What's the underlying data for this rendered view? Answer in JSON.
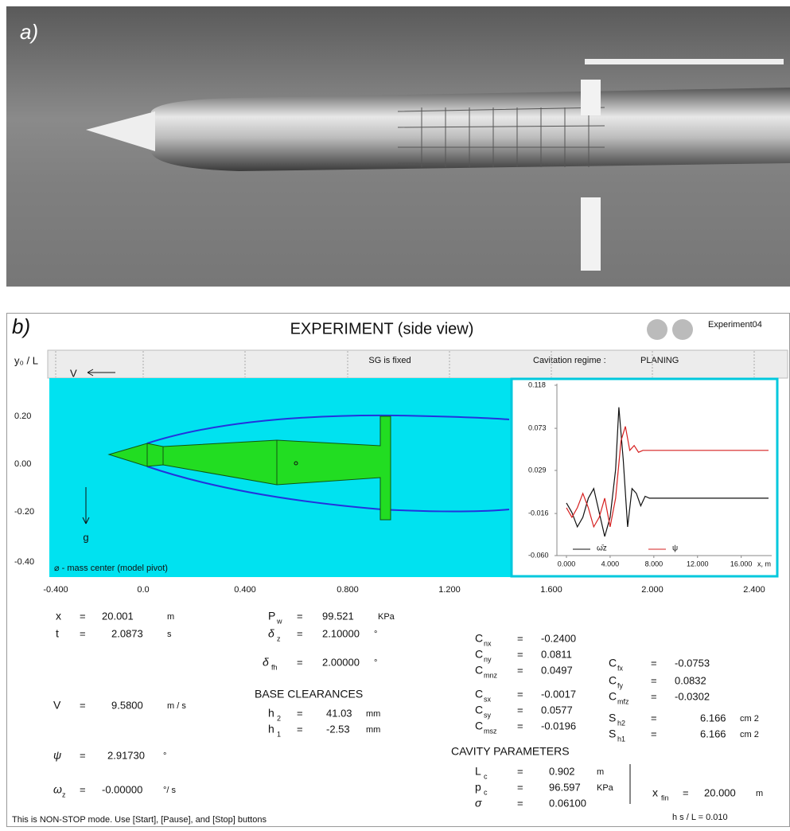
{
  "photo": {
    "label": "a)"
  },
  "sim": {
    "label": "b)",
    "title": "EXPERIMENT (side view)",
    "experiment": "Experiment04",
    "y_axis_label": "y₀ / L",
    "status": "SG is fixed",
    "regime_label": "Cavitation regime :",
    "regime": "PLANING",
    "velocity_arrow": "V",
    "gravity": "g",
    "mass_center_note": "⌀ - mass center  (model pivot)",
    "y_tick_labels": [
      "0.20",
      "0.00",
      "-0.20",
      "-0.40"
    ],
    "x_tick_labels": [
      "-0.400",
      "0.0",
      "0.400",
      "0.800",
      "1.200",
      "1.600",
      "2.000",
      "2.400"
    ],
    "inset_chart": {
      "type": "line",
      "xlim": [
        0,
        18.5
      ],
      "ylim": [
        -0.06,
        0.118
      ],
      "xticks": [
        {
          "value": 0,
          "label": "0.000"
        },
        {
          "value": 4,
          "label": "4.000"
        },
        {
          "value": 8,
          "label": "8.000"
        },
        {
          "value": 12,
          "label": "12.000"
        },
        {
          "value": 16,
          "label": "16.000"
        }
      ],
      "yticks": [
        0.118,
        0.073,
        0.029,
        -0.016,
        {
          "value": -0.06,
          "label": "-0.060"
        }
      ],
      "x_label": "x, m",
      "series": [
        {
          "name": "ω̄z",
          "color": "#111111",
          "x": [
            0,
            0.5,
            1,
            1.5,
            2,
            2.5,
            3,
            3.5,
            4,
            4.5,
            4.8,
            5.2,
            5.6,
            6,
            6.4,
            6.8,
            7.2,
            7.6,
            8,
            18.5
          ],
          "values": [
            -0.005,
            -0.015,
            -0.03,
            -0.02,
            0.0,
            0.01,
            -0.015,
            -0.04,
            -0.02,
            0.03,
            0.095,
            0.04,
            -0.03,
            0.01,
            0.005,
            -0.008,
            0.002,
            0.0,
            0.0,
            0.0
          ]
        },
        {
          "name": "ψ",
          "color": "#d62020",
          "x": [
            0,
            0.5,
            1,
            1.5,
            2,
            2.5,
            3,
            3.5,
            4,
            4.5,
            5,
            5.4,
            5.8,
            6.2,
            6.6,
            7,
            8,
            18.5
          ],
          "values": [
            -0.01,
            -0.02,
            -0.01,
            0.005,
            -0.01,
            -0.03,
            -0.02,
            0.0,
            -0.03,
            0.0,
            0.06,
            0.075,
            0.05,
            0.055,
            0.048,
            0.05,
            0.05,
            0.05
          ]
        }
      ]
    },
    "equals_sign": "=",
    "readouts": [
      {
        "sym": "x",
        "sub": "",
        "value": "20.001",
        "unit": "m"
      },
      {
        "sym": "t",
        "sub": "",
        "value": "2.0873",
        "unit": "s"
      },
      {
        "sym": "P",
        "sub": "w",
        "value": "99.521",
        "unit": "KPa"
      },
      {
        "sym": "δ",
        "sub": "z",
        "value": "2.10000",
        "unit": "°"
      },
      {
        "sym": "δ",
        "sub": "fh",
        "value": "2.00000",
        "unit": "°"
      },
      {
        "sym": "h",
        "sub": "2",
        "value": "41.03",
        "unit": "mm"
      },
      {
        "sym": "h",
        "sub": "1",
        "value": "-2.53",
        "unit": "mm"
      },
      {
        "sym": "V",
        "sub": "",
        "value": "9.5800",
        "unit": "m / s"
      },
      {
        "sym": "ψ",
        "sub": "",
        "value": "2.91730",
        "unit": "°"
      },
      {
        "sym": "ω",
        "sub": "z",
        "value": "-0.00000",
        "unit": "°/ s"
      },
      {
        "sym": "C",
        "sub": "nx",
        "value": "-0.2400",
        "unit": ""
      },
      {
        "sym": "C",
        "sub": "ny",
        "value": "0.0811",
        "unit": ""
      },
      {
        "sym": "C",
        "sub": "mnz",
        "value": "0.0497",
        "unit": ""
      },
      {
        "sym": "C",
        "sub": "sx",
        "value": "-0.0017",
        "unit": ""
      },
      {
        "sym": "C",
        "sub": "sy",
        "value": "0.0577",
        "unit": ""
      },
      {
        "sym": "C",
        "sub": "msz",
        "value": "-0.0196",
        "unit": ""
      },
      {
        "sym": "C",
        "sub": "fx",
        "value": "-0.0753",
        "unit": ""
      },
      {
        "sym": "C",
        "sub": "fy",
        "value": "0.0832",
        "unit": ""
      },
      {
        "sym": "C",
        "sub": "mfz",
        "value": "-0.0302",
        "unit": ""
      },
      {
        "sym": "S",
        "sub": "h2",
        "value": "6.166",
        "unit": "cm  2"
      },
      {
        "sym": "S",
        "sub": "h1",
        "value": "6.166",
        "unit": "cm  2"
      },
      {
        "sym": "L",
        "sub": "c",
        "value": "0.902",
        "unit": "m"
      },
      {
        "sym": "p",
        "sub": "c",
        "value": "96.597",
        "unit": "KPa"
      },
      {
        "sym": "σ",
        "sub": "",
        "value": "0.06100",
        "unit": ""
      },
      {
        "sym": "x",
        "sub": "fin",
        "value": "20.000",
        "unit": "m"
      }
    ],
    "base_clearances": "BASE CLEARANCES",
    "cavity_parameters": "CAVITY  PARAMETERS",
    "hs_ratio": "h s  / L  =  0.010",
    "footer": "This is NON-STOP mode. Use [Start], [Pause], and [Stop] buttons"
  }
}
